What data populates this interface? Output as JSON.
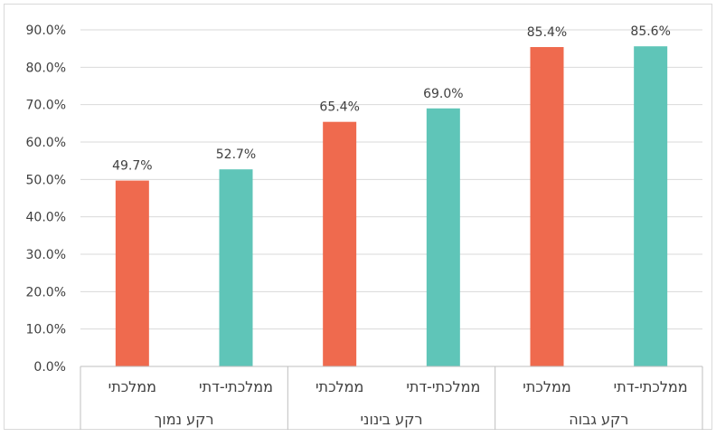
{
  "chart_data": {
    "type": "bar",
    "title": "",
    "xlabel": "",
    "ylabel": "",
    "ylim": [
      0,
      90
    ],
    "y_ticks": [
      "0.0%",
      "10.0%",
      "20.0%",
      "30.0%",
      "40.0%",
      "50.0%",
      "60.0%",
      "70.0%",
      "80.0%",
      "90.0%"
    ],
    "grid": true,
    "legend": "none",
    "groups": [
      {
        "label": "רקע נמוך",
        "bars": [
          {
            "category": "ממלכתי",
            "value": 49.7,
            "label": "49.7%",
            "color": "#ef6a4e"
          },
          {
            "category": "ממלכתי-דתי",
            "value": 52.7,
            "label": "52.7%",
            "color": "#5fc5b8"
          }
        ]
      },
      {
        "label": "רקע בינוני",
        "bars": [
          {
            "category": "ממלכתי",
            "value": 65.4,
            "label": "65.4%",
            "color": "#ef6a4e"
          },
          {
            "category": "ממלכתי-דתי",
            "value": 69.0,
            "label": "69.0%",
            "color": "#5fc5b8"
          }
        ]
      },
      {
        "label": "רקע גבוה",
        "bars": [
          {
            "category": "ממלכתי",
            "value": 85.4,
            "label": "85.4%",
            "color": "#ef6a4e"
          },
          {
            "category": "ממלכתי-דתי",
            "value": 85.6,
            "label": "85.6%",
            "color": "#5fc5b8"
          }
        ]
      }
    ]
  }
}
